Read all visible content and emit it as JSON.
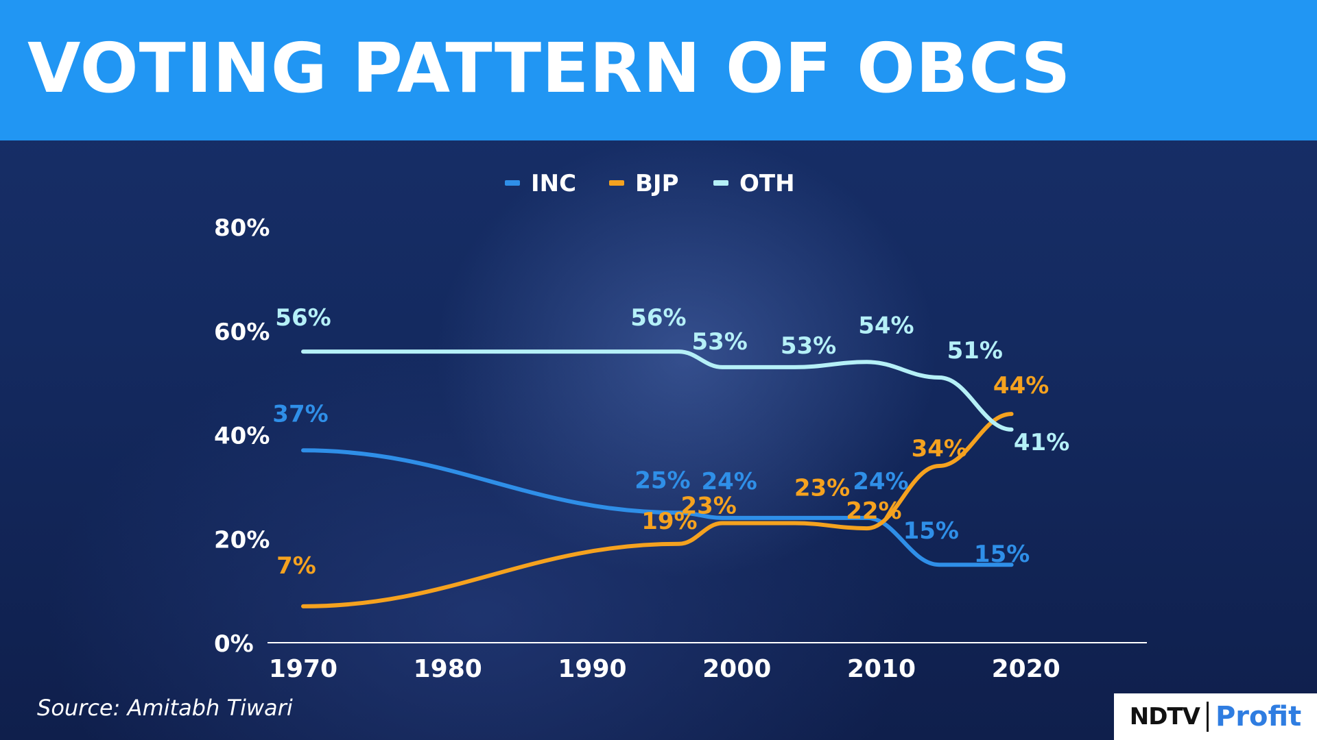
{
  "header": {
    "title": "VOTING PATTERN OF OBCS"
  },
  "source": "Source: Amitabh Tiwari",
  "logo": {
    "left": "NDTV",
    "right": "Profit"
  },
  "chart_data": {
    "type": "line",
    "title": "VOTING PATTERN OF OBCS",
    "xlabel": "",
    "ylabel": "",
    "xlim": [
      1970,
      2024
    ],
    "ylim": [
      0,
      80
    ],
    "xticks": [
      1970,
      1980,
      1990,
      2000,
      2010,
      2020
    ],
    "yticks": [
      0,
      20,
      40,
      60,
      80
    ],
    "ytick_labels": [
      "0%",
      "20%",
      "40%",
      "60%",
      "80%"
    ],
    "grid": false,
    "legend": "top-center",
    "x": [
      1970,
      1996,
      1999,
      2004,
      2009,
      2014,
      2019
    ],
    "series": [
      {
        "name": "INC",
        "color": "#2f8fe8",
        "values": [
          37,
          25,
          24,
          24,
          24,
          15,
          15
        ],
        "labels": [
          "37%",
          "25%",
          "24%",
          "",
          "24%",
          "15%",
          "15%"
        ]
      },
      {
        "name": "BJP",
        "color": "#f5a21f",
        "values": [
          7,
          19,
          23,
          23,
          22,
          34,
          44
        ],
        "labels": [
          "7%",
          "19%",
          "23%",
          "23%",
          "22%",
          "34%",
          "44%"
        ]
      },
      {
        "name": "OTH",
        "color": "#b5f0f7",
        "values": [
          56,
          56,
          53,
          53,
          54,
          51,
          41
        ],
        "labels": [
          "56%",
          "56%",
          "53%",
          "53%",
          "54%",
          "51%",
          "41%"
        ]
      }
    ]
  }
}
